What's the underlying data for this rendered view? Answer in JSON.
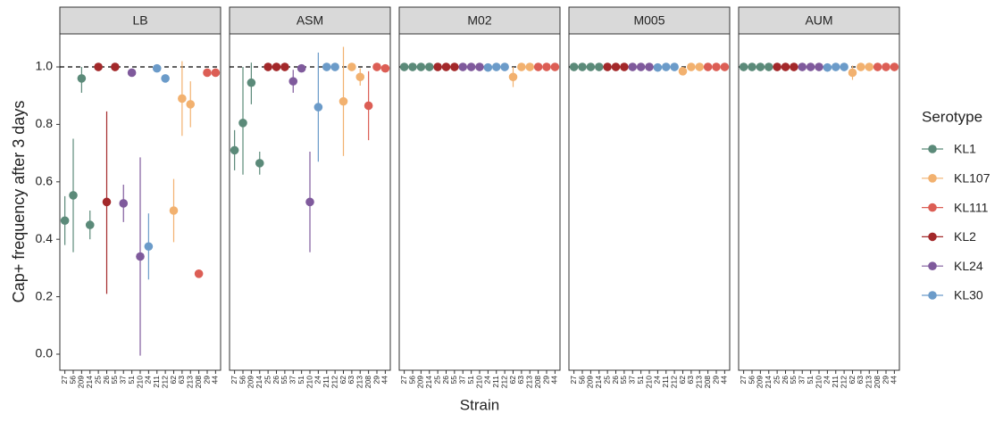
{
  "chart_data": {
    "type": "pointrange",
    "y_label": "Cap+ frequency after 3 days",
    "x_label": "Strain",
    "legend_title": "Serotype",
    "ylim": [
      -0.056,
      1.115
    ],
    "yticks": [
      {
        "value": 0,
        "label": "0.0"
      },
      0.2,
      0.4,
      0.6,
      0.8,
      {
        "value": 1,
        "label": "1.0"
      }
    ],
    "hline": 1,
    "categories": [
      "27",
      "56",
      "209",
      "214",
      "25",
      "26",
      "55",
      "37",
      "51",
      "210",
      "24",
      "211",
      "212",
      "62",
      "63",
      "213",
      "208",
      "29",
      "44"
    ],
    "category_series": [
      "KL1",
      "KL1",
      "KL1",
      "KL1",
      "KL2",
      "KL2",
      "KL2",
      "KL24",
      "KL24",
      "KL24",
      "KL30",
      "KL30",
      "KL30",
      "KL107",
      "KL107",
      "KL107",
      "KL111",
      "KL111",
      "KL111"
    ],
    "series": [
      {
        "name": "KL1",
        "color": "#5b8a79"
      },
      {
        "name": "KL107",
        "color": "#f2b16f"
      },
      {
        "name": "KL111",
        "color": "#dc5e55"
      },
      {
        "name": "KL2",
        "color": "#a3282a"
      },
      {
        "name": "KL24",
        "color": "#7f5a9c"
      },
      {
        "name": "KL30",
        "color": "#6b9bc9"
      }
    ],
    "panels": [
      {
        "title": "LB",
        "values": [
          0.465,
          0.553,
          0.96,
          0.45,
          1.0,
          0.53,
          1.0,
          0.525,
          0.98,
          0.34,
          0.375,
          0.995,
          0.96,
          0.5,
          0.89,
          0.87,
          0.28,
          0.98,
          0.98
        ],
        "lower": [
          0.38,
          0.355,
          0.91,
          0.4,
          null,
          0.21,
          null,
          0.46,
          0.97,
          -0.005,
          0.26,
          null,
          null,
          0.39,
          0.76,
          0.79,
          null,
          null,
          null
        ],
        "upper": [
          0.55,
          0.75,
          1.0,
          0.5,
          null,
          0.845,
          null,
          0.59,
          0.99,
          0.685,
          0.49,
          null,
          null,
          0.61,
          1.02,
          0.95,
          null,
          null,
          null
        ]
      },
      {
        "title": "ASM",
        "values": [
          0.71,
          0.805,
          0.945,
          0.665,
          1.0,
          1.0,
          1.0,
          0.95,
          0.995,
          0.53,
          0.86,
          1.0,
          1.0,
          0.88,
          1.0,
          0.965,
          0.865,
          1.0,
          0.995
        ],
        "lower": [
          0.64,
          0.625,
          0.87,
          0.625,
          null,
          null,
          null,
          0.91,
          null,
          0.355,
          0.67,
          null,
          null,
          0.69,
          null,
          0.935,
          0.745,
          null,
          null
        ],
        "upper": [
          0.78,
          1.0,
          1.015,
          0.705,
          null,
          null,
          null,
          0.99,
          null,
          0.705,
          1.05,
          null,
          null,
          1.07,
          null,
          0.995,
          0.985,
          null,
          null
        ]
      },
      {
        "title": "M02",
        "values": [
          1.0,
          1.0,
          1.0,
          1.0,
          1.0,
          1.0,
          1.0,
          1.0,
          1.0,
          1.0,
          0.998,
          1.0,
          1.0,
          0.965,
          1.0,
          1.0,
          1.0,
          1.0,
          1.0
        ],
        "lower": [
          null,
          null,
          null,
          null,
          null,
          null,
          null,
          null,
          null,
          null,
          null,
          null,
          null,
          0.93,
          null,
          null,
          null,
          null,
          null
        ],
        "upper": [
          null,
          null,
          null,
          null,
          null,
          null,
          null,
          null,
          null,
          null,
          null,
          null,
          null,
          1.0,
          null,
          null,
          null,
          null,
          null
        ]
      },
      {
        "title": "M005",
        "values": [
          1.0,
          1.0,
          1.0,
          1.0,
          1.0,
          1.0,
          1.0,
          1.0,
          1.0,
          1.0,
          0.998,
          1.0,
          1.0,
          0.985,
          1.0,
          1.0,
          1.0,
          1.0,
          1.0
        ],
        "lower": [
          null,
          null,
          null,
          null,
          null,
          null,
          null,
          null,
          null,
          null,
          null,
          null,
          null,
          null,
          null,
          null,
          null,
          null,
          null
        ],
        "upper": [
          null,
          null,
          null,
          null,
          null,
          null,
          null,
          null,
          null,
          null,
          null,
          null,
          null,
          null,
          null,
          null,
          null,
          null,
          null
        ]
      },
      {
        "title": "AUM",
        "values": [
          1.0,
          1.0,
          1.0,
          1.0,
          1.0,
          1.0,
          1.0,
          1.0,
          1.0,
          1.0,
          0.998,
          1.0,
          1.0,
          0.98,
          1.0,
          1.0,
          1.0,
          1.0,
          1.0
        ],
        "lower": [
          null,
          null,
          null,
          null,
          null,
          null,
          null,
          null,
          null,
          null,
          null,
          null,
          null,
          0.955,
          null,
          null,
          null,
          null,
          null
        ],
        "upper": [
          null,
          null,
          null,
          null,
          null,
          null,
          null,
          null,
          null,
          null,
          null,
          null,
          null,
          1.005,
          null,
          null,
          null,
          null,
          null
        ]
      }
    ]
  }
}
